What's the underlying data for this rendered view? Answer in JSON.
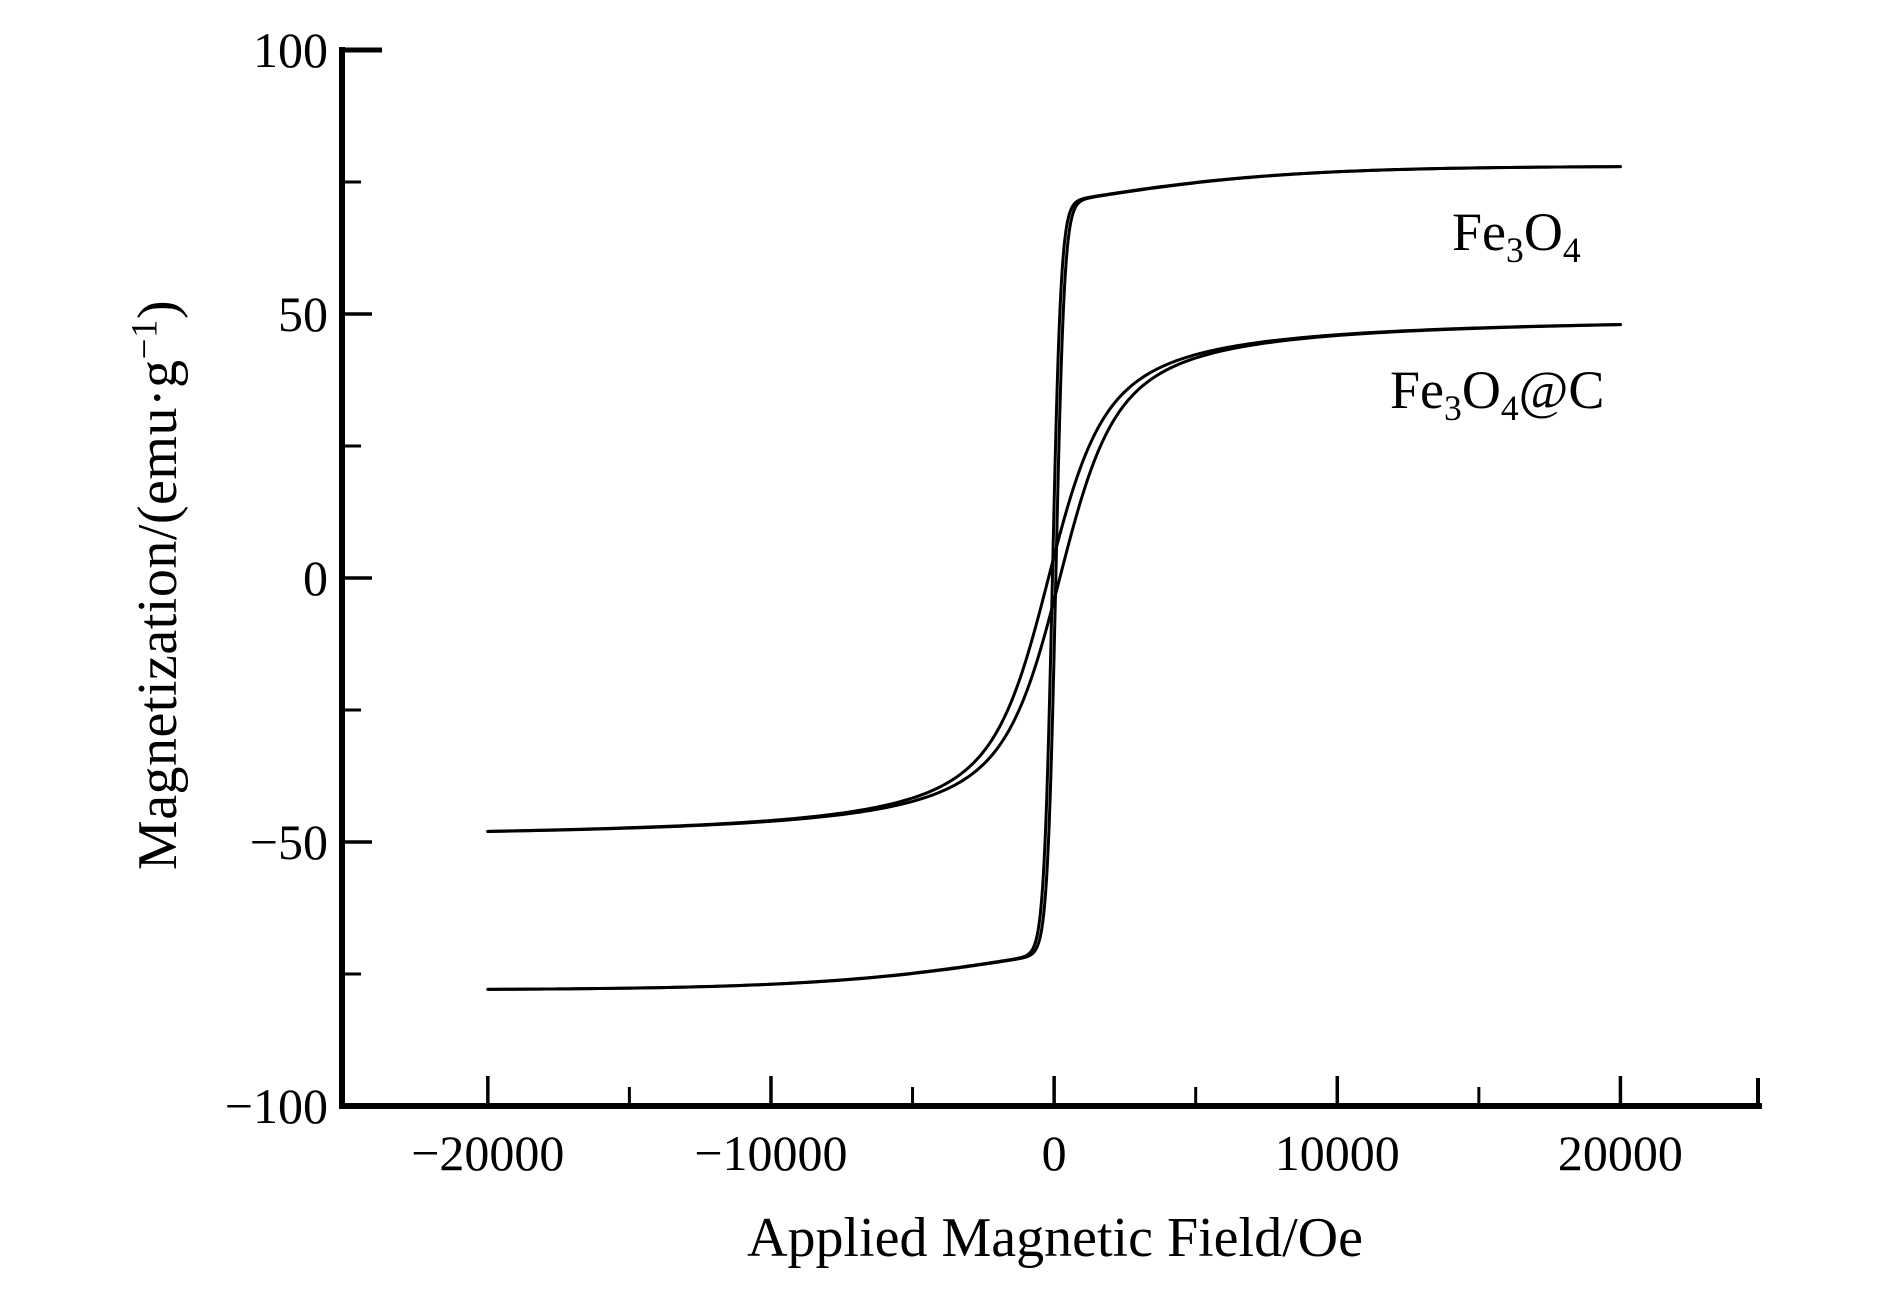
{
  "figure": {
    "background_color": "#ffffff",
    "ink_color": "#000000"
  },
  "y_axis": {
    "title_parts": [
      {
        "text": "Magnetization/(emu·g"
      },
      {
        "text": "−1",
        "sup": true
      },
      {
        "text": ")"
      }
    ],
    "major_ticks": [
      {
        "value": 100,
        "label": "100"
      },
      {
        "value": 50,
        "label": "50"
      },
      {
        "value": 0,
        "label": "0"
      },
      {
        "value": -50,
        "label": "−50"
      },
      {
        "value": -100,
        "label": "−100"
      }
    ],
    "minor_tick_values": [
      75,
      25,
      -25,
      -75
    ]
  },
  "x_axis": {
    "title": "Applied Magnetic Field/Oe",
    "major_ticks": [
      {
        "value": -20000,
        "label": "−20000"
      },
      {
        "value": -10000,
        "label": "−10000"
      },
      {
        "value": 0,
        "label": "0"
      },
      {
        "value": 10000,
        "label": "10000"
      },
      {
        "value": 20000,
        "label": "20000"
      }
    ],
    "minor_tick_values": [
      -15000,
      -5000,
      5000,
      15000
    ]
  },
  "chart_data": {
    "type": "line",
    "title": "",
    "xlabel": "Applied Magnetic Field/Oe",
    "ylabel": "Magnetization/(emu·g−1)",
    "xlim": [
      -25150,
      25000
    ],
    "ylim": [
      -100,
      100
    ],
    "x_major_ticks": [
      -20000,
      -10000,
      0,
      10000,
      20000
    ],
    "x_minor_ticks": [
      -15000,
      -5000,
      5000,
      15000
    ],
    "y_major_ticks": [
      -100,
      -50,
      0,
      50,
      100
    ],
    "y_minor_ticks": [
      -75,
      -25,
      25,
      75
    ],
    "grid": false,
    "legend_position": "inline-right",
    "series": [
      {
        "name": "Fe3O4",
        "label_parts": [
          {
            "text": "Fe"
          },
          {
            "text": "3",
            "sub": true
          },
          {
            "text": "O"
          },
          {
            "text": "4",
            "sub": true
          }
        ],
        "color": "#000000",
        "h_range_Oe": [
          -20000,
          20000
        ],
        "saturation_magnetization_emu_per_g": 78,
        "coercivity_Oe": 60,
        "model": {
          "kind": "tanh2",
          "a1": 71,
          "h1": 300,
          "a2": 7,
          "h2": 8000,
          "hc": 60
        },
        "points_descending": [
          [
            20000,
            77.9
          ],
          [
            15000,
            77.7
          ],
          [
            10000,
            76.9
          ],
          [
            7000,
            75.9
          ],
          [
            5000,
            74.9
          ],
          [
            3500,
            73.9
          ],
          [
            2500,
            73.2
          ],
          [
            1800,
            72.6
          ],
          [
            1300,
            72.1
          ],
          [
            900,
            71.5
          ],
          [
            600,
            69.9
          ],
          [
            400,
            65.1
          ],
          [
            250,
            55.3
          ],
          [
            150,
            43.1
          ],
          [
            80,
            31.0
          ],
          [
            0,
            14.1
          ],
          [
            -80,
            -4.7
          ],
          [
            -150,
            -20.8
          ],
          [
            -250,
            -40.0
          ],
          [
            -400,
            -58.0
          ],
          [
            -600,
            -67.7
          ],
          [
            -900,
            -71.2
          ],
          [
            -1300,
            -72.1
          ],
          [
            -1800,
            -72.5
          ],
          [
            -2500,
            -73.1
          ],
          [
            -3500,
            -73.8
          ],
          [
            -5000,
            -74.8
          ],
          [
            -7000,
            -75.9
          ],
          [
            -10000,
            -76.9
          ],
          [
            -15000,
            -77.7
          ],
          [
            -20000,
            -77.9
          ]
        ],
        "points_ascending": [
          [
            -20000,
            -77.9
          ],
          [
            -15000,
            -77.7
          ],
          [
            -10000,
            -76.9
          ],
          [
            -7000,
            -75.9
          ],
          [
            -5000,
            -74.9
          ],
          [
            -3500,
            -73.9
          ],
          [
            -2500,
            -73.2
          ],
          [
            -1800,
            -72.6
          ],
          [
            -1300,
            -72.1
          ],
          [
            -900,
            -71.5
          ],
          [
            -600,
            -69.9
          ],
          [
            -400,
            -65.1
          ],
          [
            -250,
            -55.3
          ],
          [
            -150,
            -43.1
          ],
          [
            -80,
            -31.0
          ],
          [
            0,
            -14.1
          ],
          [
            80,
            4.7
          ],
          [
            150,
            20.8
          ],
          [
            250,
            40.0
          ],
          [
            400,
            58.0
          ],
          [
            600,
            67.7
          ],
          [
            900,
            71.2
          ],
          [
            1300,
            72.1
          ],
          [
            1800,
            72.5
          ],
          [
            2500,
            73.1
          ],
          [
            3500,
            73.8
          ],
          [
            5000,
            74.8
          ],
          [
            7000,
            75.9
          ],
          [
            10000,
            76.9
          ],
          [
            15000,
            77.7
          ],
          [
            20000,
            77.9
          ]
        ]
      },
      {
        "name": "Fe3O4@C",
        "label_parts": [
          {
            "text": "Fe"
          },
          {
            "text": "3",
            "sub": true
          },
          {
            "text": "O"
          },
          {
            "text": "4",
            "sub": true
          },
          {
            "text": "@C"
          }
        ],
        "color": "#000000",
        "h_range_Oe": [
          -20000,
          20000
        ],
        "saturation_magnetization_emu_per_g": 48,
        "coercivity_Oe": 200,
        "model": {
          "kind": "langevin",
          "ms": 50,
          "h0": 800,
          "hc": 200
        },
        "points_descending": [
          [
            20000,
            48.0
          ],
          [
            15000,
            47.4
          ],
          [
            10000,
            46.1
          ],
          [
            7000,
            44.4
          ],
          [
            5000,
            42.3
          ],
          [
            3500,
            39.2
          ],
          [
            2500,
            35.3
          ],
          [
            1800,
            30.7
          ],
          [
            1300,
            25.7
          ],
          [
            900,
            20.5
          ],
          [
            600,
            15.7
          ],
          [
            400,
            12.1
          ],
          [
            250,
            9.2
          ],
          [
            150,
            7.2
          ],
          [
            80,
            5.8
          ],
          [
            0,
            4.1
          ],
          [
            -80,
            2.5
          ],
          [
            -150,
            1.0
          ],
          [
            -250,
            -1.0
          ],
          [
            -400,
            -4.1
          ],
          [
            -600,
            -8.2
          ],
          [
            -900,
            -13.9
          ],
          [
            -1300,
            -20.5
          ],
          [
            -1800,
            -26.9
          ],
          [
            -2500,
            -32.9
          ],
          [
            -3500,
            -37.9
          ],
          [
            -5000,
            -41.7
          ],
          [
            -7000,
            -44.1
          ],
          [
            -10000,
            -45.9
          ],
          [
            -15000,
            -47.3
          ],
          [
            -20000,
            -48.0
          ]
        ],
        "points_ascending": [
          [
            -20000,
            -48.0
          ],
          [
            -15000,
            -47.4
          ],
          [
            -10000,
            -46.1
          ],
          [
            -7000,
            -44.4
          ],
          [
            -5000,
            -42.3
          ],
          [
            -3500,
            -39.2
          ],
          [
            -2500,
            -35.3
          ],
          [
            -1800,
            -30.7
          ],
          [
            -1300,
            -25.7
          ],
          [
            -900,
            -20.5
          ],
          [
            -600,
            -15.7
          ],
          [
            -400,
            -12.1
          ],
          [
            -250,
            -9.2
          ],
          [
            -150,
            -7.2
          ],
          [
            -80,
            -5.8
          ],
          [
            0,
            -4.1
          ],
          [
            80,
            -2.5
          ],
          [
            150,
            -1.0
          ],
          [
            250,
            1.0
          ],
          [
            400,
            4.1
          ],
          [
            600,
            8.2
          ],
          [
            900,
            13.9
          ],
          [
            1300,
            20.5
          ],
          [
            1800,
            26.9
          ],
          [
            2500,
            32.9
          ],
          [
            3500,
            37.9
          ],
          [
            5000,
            41.7
          ],
          [
            7000,
            44.1
          ],
          [
            10000,
            45.9
          ],
          [
            15000,
            47.3
          ],
          [
            20000,
            48.0
          ]
        ]
      }
    ]
  }
}
